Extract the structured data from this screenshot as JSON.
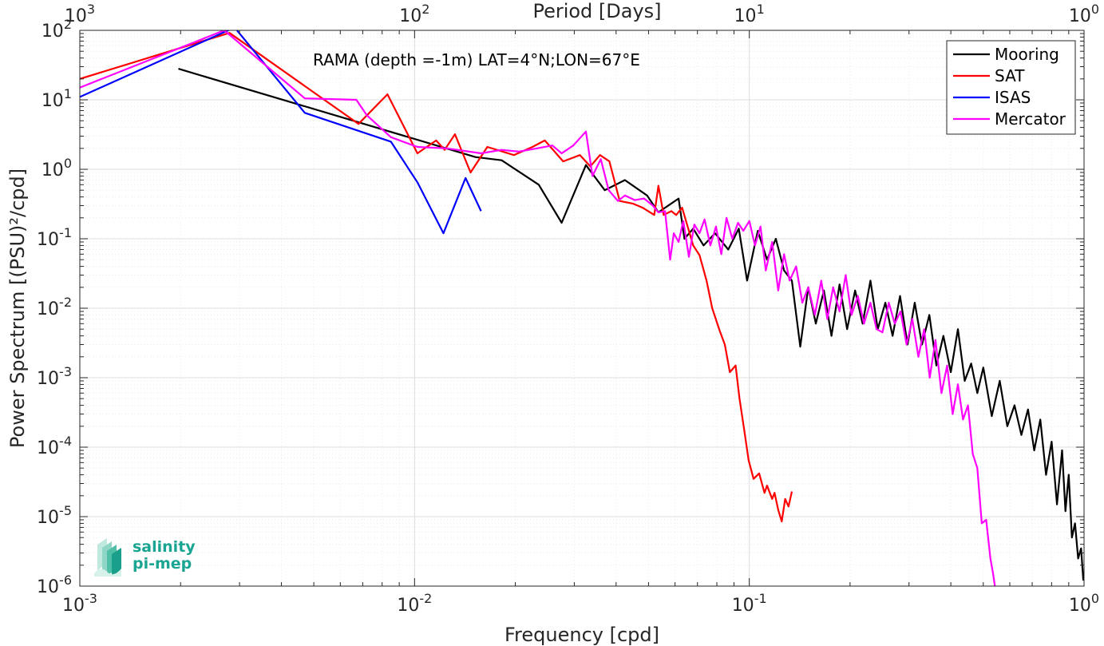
{
  "chart_data": {
    "type": "line",
    "scale": {
      "x": "log",
      "y": "log"
    },
    "xlabel": "Frequency [cpd]",
    "ylabel": "Power Spectrum [(PSU)²/cpd]",
    "top_axis_label": "Period [Days]",
    "annotation": "RAMA (depth =-1m) LAT=4°N;LON=67°E",
    "xlim": [
      0.001,
      1
    ],
    "ylim": [
      1e-06,
      100
    ],
    "grid": true,
    "legend_position": "top-right",
    "x_ticks": [
      {
        "value": 0.001,
        "base": "10",
        "exp": "-3"
      },
      {
        "value": 0.01,
        "base": "10",
        "exp": "-2"
      },
      {
        "value": 0.1,
        "base": "10",
        "exp": "-1"
      },
      {
        "value": 1,
        "base": "10",
        "exp": "0"
      }
    ],
    "top_ticks": [
      {
        "value": 0.001,
        "base": "10",
        "exp": "3"
      },
      {
        "value": 0.01,
        "base": "10",
        "exp": "2"
      },
      {
        "value": 0.1,
        "base": "10",
        "exp": "1"
      },
      {
        "value": 1,
        "base": "10",
        "exp": "0"
      }
    ],
    "y_ticks": [
      {
        "value": 100,
        "base": "10",
        "exp": "2"
      },
      {
        "value": 10,
        "base": "10",
        "exp": "1"
      },
      {
        "value": 1,
        "base": "10",
        "exp": "0"
      },
      {
        "value": 0.1,
        "base": "10",
        "exp": "-1"
      },
      {
        "value": 0.01,
        "base": "10",
        "exp": "-2"
      },
      {
        "value": 0.001,
        "base": "10",
        "exp": "-3"
      },
      {
        "value": 0.0001,
        "base": "10",
        "exp": "-4"
      },
      {
        "value": 1e-05,
        "base": "10",
        "exp": "-5"
      },
      {
        "value": 1e-06,
        "base": "10",
        "exp": "-6"
      }
    ],
    "series": [
      {
        "name": "Mooring",
        "color": "#000000",
        "points": [
          [
            0.00197,
            28
          ],
          [
            0.0152,
            1.5
          ],
          [
            0.0182,
            1.35
          ],
          [
            0.0235,
            0.6
          ],
          [
            0.0275,
            0.17
          ],
          [
            0.0325,
            1.15
          ],
          [
            0.037,
            0.5
          ],
          [
            0.0425,
            0.7
          ],
          [
            0.0495,
            0.42
          ],
          [
            0.0535,
            0.24
          ],
          [
            0.0615,
            0.38
          ],
          [
            0.064,
            0.1
          ],
          [
            0.068,
            0.14
          ],
          [
            0.073,
            0.08
          ],
          [
            0.079,
            0.12
          ],
          [
            0.0865,
            0.07
          ],
          [
            0.093,
            0.14
          ],
          [
            0.0985,
            0.025
          ],
          [
            0.106,
            0.13
          ],
          [
            0.113,
            0.05
          ],
          [
            0.12,
            0.1
          ],
          [
            0.127,
            0.035
          ],
          [
            0.134,
            0.025
          ],
          [
            0.142,
            0.0028
          ],
          [
            0.15,
            0.02
          ],
          [
            0.158,
            0.006
          ],
          [
            0.167,
            0.018
          ],
          [
            0.176,
            0.004
          ],
          [
            0.186,
            0.022
          ],
          [
            0.196,
            0.005
          ],
          [
            0.207,
            0.018
          ],
          [
            0.218,
            0.006
          ],
          [
            0.23,
            0.025
          ],
          [
            0.242,
            0.005
          ],
          [
            0.255,
            0.012
          ],
          [
            0.268,
            0.004
          ],
          [
            0.282,
            0.015
          ],
          [
            0.297,
            0.003
          ],
          [
            0.312,
            0.012
          ],
          [
            0.328,
            0.003
          ],
          [
            0.345,
            0.008
          ],
          [
            0.362,
            0.0015
          ],
          [
            0.38,
            0.004
          ],
          [
            0.4,
            0.0012
          ],
          [
            0.42,
            0.005
          ],
          [
            0.44,
            0.0009
          ],
          [
            0.46,
            0.0016
          ],
          [
            0.48,
            0.0006
          ],
          [
            0.5,
            0.0014
          ],
          [
            0.53,
            0.00028
          ],
          [
            0.56,
            0.0009
          ],
          [
            0.59,
            0.0002
          ],
          [
            0.62,
            0.0004
          ],
          [
            0.65,
            0.00015
          ],
          [
            0.68,
            0.00035
          ],
          [
            0.71,
            9e-05
          ],
          [
            0.74,
            0.00025
          ],
          [
            0.77,
            4e-05
          ],
          [
            0.8,
            0.00012
          ],
          [
            0.83,
            1.5e-05
          ],
          [
            0.86,
            9e-05
          ],
          [
            0.88,
            1.2e-05
          ],
          [
            0.9,
            4e-05
          ],
          [
            0.92,
            5e-06
          ],
          [
            0.94,
            8e-06
          ],
          [
            0.96,
            2.5e-06
          ],
          [
            0.98,
            3.5e-06
          ],
          [
            0.995,
            1.2e-06
          ]
        ]
      },
      {
        "name": "SAT",
        "color": "#ff0000",
        "points": [
          [
            0.001,
            20
          ],
          [
            0.0028,
            92
          ],
          [
            0.0068,
            4.5
          ],
          [
            0.0083,
            12
          ],
          [
            0.0102,
            1.7
          ],
          [
            0.0116,
            2.6
          ],
          [
            0.0123,
            1.9
          ],
          [
            0.0132,
            3.2
          ],
          [
            0.0147,
            0.9
          ],
          [
            0.0165,
            2.1
          ],
          [
            0.0198,
            1.6
          ],
          [
            0.0225,
            2.1
          ],
          [
            0.0245,
            2.6
          ],
          [
            0.0278,
            1.3
          ],
          [
            0.0312,
            1.6
          ],
          [
            0.0335,
            1.1
          ],
          [
            0.0358,
            1.6
          ],
          [
            0.0382,
            1.3
          ],
          [
            0.041,
            0.35
          ],
          [
            0.045,
            0.32
          ],
          [
            0.048,
            0.28
          ],
          [
            0.052,
            0.22
          ],
          [
            0.0535,
            0.58
          ],
          [
            0.0555,
            0.22
          ],
          [
            0.0585,
            0.25
          ],
          [
            0.0605,
            0.22
          ],
          [
            0.063,
            0.28
          ],
          [
            0.068,
            0.08
          ],
          [
            0.071,
            0.058
          ],
          [
            0.0745,
            0.025
          ],
          [
            0.0775,
            0.01
          ],
          [
            0.0815,
            0.0048
          ],
          [
            0.0845,
            0.003
          ],
          [
            0.0875,
            0.0012
          ],
          [
            0.091,
            0.0015
          ],
          [
            0.0935,
            0.0005
          ],
          [
            0.0965,
            0.00018
          ],
          [
            0.0995,
            6.5e-05
          ],
          [
            0.103,
            3.5e-05
          ],
          [
            0.107,
            4.2e-05
          ],
          [
            0.111,
            2.2e-05
          ],
          [
            0.113,
            2.8e-05
          ],
          [
            0.117,
            1.8e-05
          ],
          [
            0.119,
            2.2e-05
          ],
          [
            0.122,
            1.25e-05
          ],
          [
            0.125,
            8.5e-06
          ],
          [
            0.128,
            1.8e-05
          ],
          [
            0.131,
            1.4e-05
          ],
          [
            0.134,
            2.3e-05
          ]
        ]
      },
      {
        "name": "ISAS",
        "color": "#0000ff",
        "points": [
          [
            0.001,
            11
          ],
          [
            0.0029,
            110
          ],
          [
            0.0047,
            6.5
          ],
          [
            0.0085,
            2.5
          ],
          [
            0.0102,
            0.65
          ],
          [
            0.0122,
            0.12
          ],
          [
            0.0142,
            0.75
          ],
          [
            0.0158,
            0.25
          ]
        ]
      },
      {
        "name": "Mercator",
        "color": "#ff00ff",
        "points": [
          [
            0.001,
            15
          ],
          [
            0.0027,
            100
          ],
          [
            0.0047,
            10.5
          ],
          [
            0.0067,
            10
          ],
          [
            0.0072,
            6
          ],
          [
            0.0085,
            2.9
          ],
          [
            0.0102,
            2.1
          ],
          [
            0.0125,
            2
          ],
          [
            0.0158,
            1.7
          ],
          [
            0.0182,
            1.9
          ],
          [
            0.0205,
            1.8
          ],
          [
            0.0232,
            2
          ],
          [
            0.0258,
            2.2
          ],
          [
            0.0275,
            1.7
          ],
          [
            0.0298,
            2.2
          ],
          [
            0.0325,
            3.5
          ],
          [
            0.034,
            0.8
          ],
          [
            0.036,
            1.4
          ],
          [
            0.038,
            0.5
          ],
          [
            0.0405,
            0.35
          ],
          [
            0.0425,
            0.42
          ],
          [
            0.0455,
            0.36
          ],
          [
            0.0485,
            0.38
          ],
          [
            0.0515,
            0.3
          ],
          [
            0.0535,
            0.24
          ],
          [
            0.056,
            0.25
          ],
          [
            0.058,
            0.05
          ],
          [
            0.0595,
            0.12
          ],
          [
            0.0615,
            0.09
          ],
          [
            0.0635,
            0.18
          ],
          [
            0.066,
            0.055
          ],
          [
            0.0685,
            0.16
          ],
          [
            0.071,
            0.12
          ],
          [
            0.0735,
            0.19
          ],
          [
            0.0765,
            0.08
          ],
          [
            0.0795,
            0.15
          ],
          [
            0.0825,
            0.06
          ],
          [
            0.0855,
            0.2
          ],
          [
            0.089,
            0.1
          ],
          [
            0.0925,
            0.17
          ],
          [
            0.096,
            0.13
          ],
          [
            0.1,
            0.18
          ],
          [
            0.104,
            0.08
          ],
          [
            0.108,
            0.15
          ],
          [
            0.112,
            0.035
          ],
          [
            0.117,
            0.09
          ],
          [
            0.122,
            0.018
          ],
          [
            0.127,
            0.06
          ],
          [
            0.132,
            0.025
          ],
          [
            0.138,
            0.04
          ],
          [
            0.144,
            0.012
          ],
          [
            0.15,
            0.02
          ],
          [
            0.157,
            0.008
          ],
          [
            0.164,
            0.025
          ],
          [
            0.171,
            0.007
          ],
          [
            0.178,
            0.02
          ],
          [
            0.186,
            0.009
          ],
          [
            0.194,
            0.03
          ],
          [
            0.202,
            0.008
          ],
          [
            0.211,
            0.015
          ],
          [
            0.22,
            0.006
          ],
          [
            0.23,
            0.012
          ],
          [
            0.24,
            0.005
          ],
          [
            0.25,
            0.0045
          ],
          [
            0.261,
            0.012
          ],
          [
            0.272,
            0.006
          ],
          [
            0.283,
            0.009
          ],
          [
            0.295,
            0.003
          ],
          [
            0.307,
            0.007
          ],
          [
            0.32,
            0.002
          ],
          [
            0.333,
            0.005
          ],
          [
            0.346,
            0.001
          ],
          [
            0.36,
            0.0035
          ],
          [
            0.375,
            0.0006
          ],
          [
            0.39,
            0.0015
          ],
          [
            0.405,
            0.0003
          ],
          [
            0.42,
            0.0008
          ],
          [
            0.435,
            0.00025
          ],
          [
            0.45,
            0.0004
          ],
          [
            0.465,
            8e-05
          ],
          [
            0.48,
            5e-05
          ],
          [
            0.495,
            8e-06
          ],
          [
            0.51,
            9e-06
          ],
          [
            0.525,
            2.5e-06
          ],
          [
            0.535,
            1.5e-06
          ],
          [
            0.545,
            8e-07
          ]
        ]
      }
    ]
  },
  "logo": {
    "line1": "salinity",
    "line2": "pi-mep"
  },
  "colors": {
    "axis": "#262626",
    "grid_major": "#dcdcdc",
    "grid_minor": "#ebebeb",
    "logo": "#1aa592"
  }
}
